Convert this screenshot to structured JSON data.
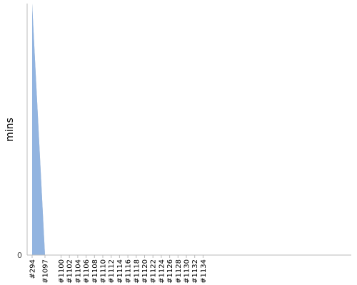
{
  "chart_data": {
    "type": "area",
    "ylabel": "mins",
    "y_tick_labels": [
      "0"
    ],
    "categories": [
      "#294",
      "#1097",
      "#1100",
      "#1102",
      "#1104",
      "#1106",
      "#1108",
      "#1110",
      "#1112",
      "#1114",
      "#1116",
      "#1118",
      "#1120",
      "#1122",
      "#1124",
      "#1126",
      "#1128",
      "#1130",
      "#1132",
      "#1134"
    ],
    "x_positions": [
      294,
      1097,
      1100,
      1102,
      1104,
      1106,
      1108,
      1110,
      1112,
      1114,
      1116,
      1118,
      1120,
      1122,
      1124,
      1126,
      1128,
      1130,
      1132,
      1134
    ],
    "series": [
      {
        "color": "#c0c0c0",
        "points": [
          [
            294,
            100
          ],
          [
            1097,
            0
          ],
          [
            1135,
            0
          ]
        ]
      },
      {
        "color": "#92b4e0",
        "points": [
          [
            294,
            100
          ],
          [
            1096,
            0
          ],
          [
            1135,
            0
          ]
        ]
      }
    ],
    "ylim": [
      0,
      100
    ],
    "grid": false,
    "legend": "none"
  }
}
